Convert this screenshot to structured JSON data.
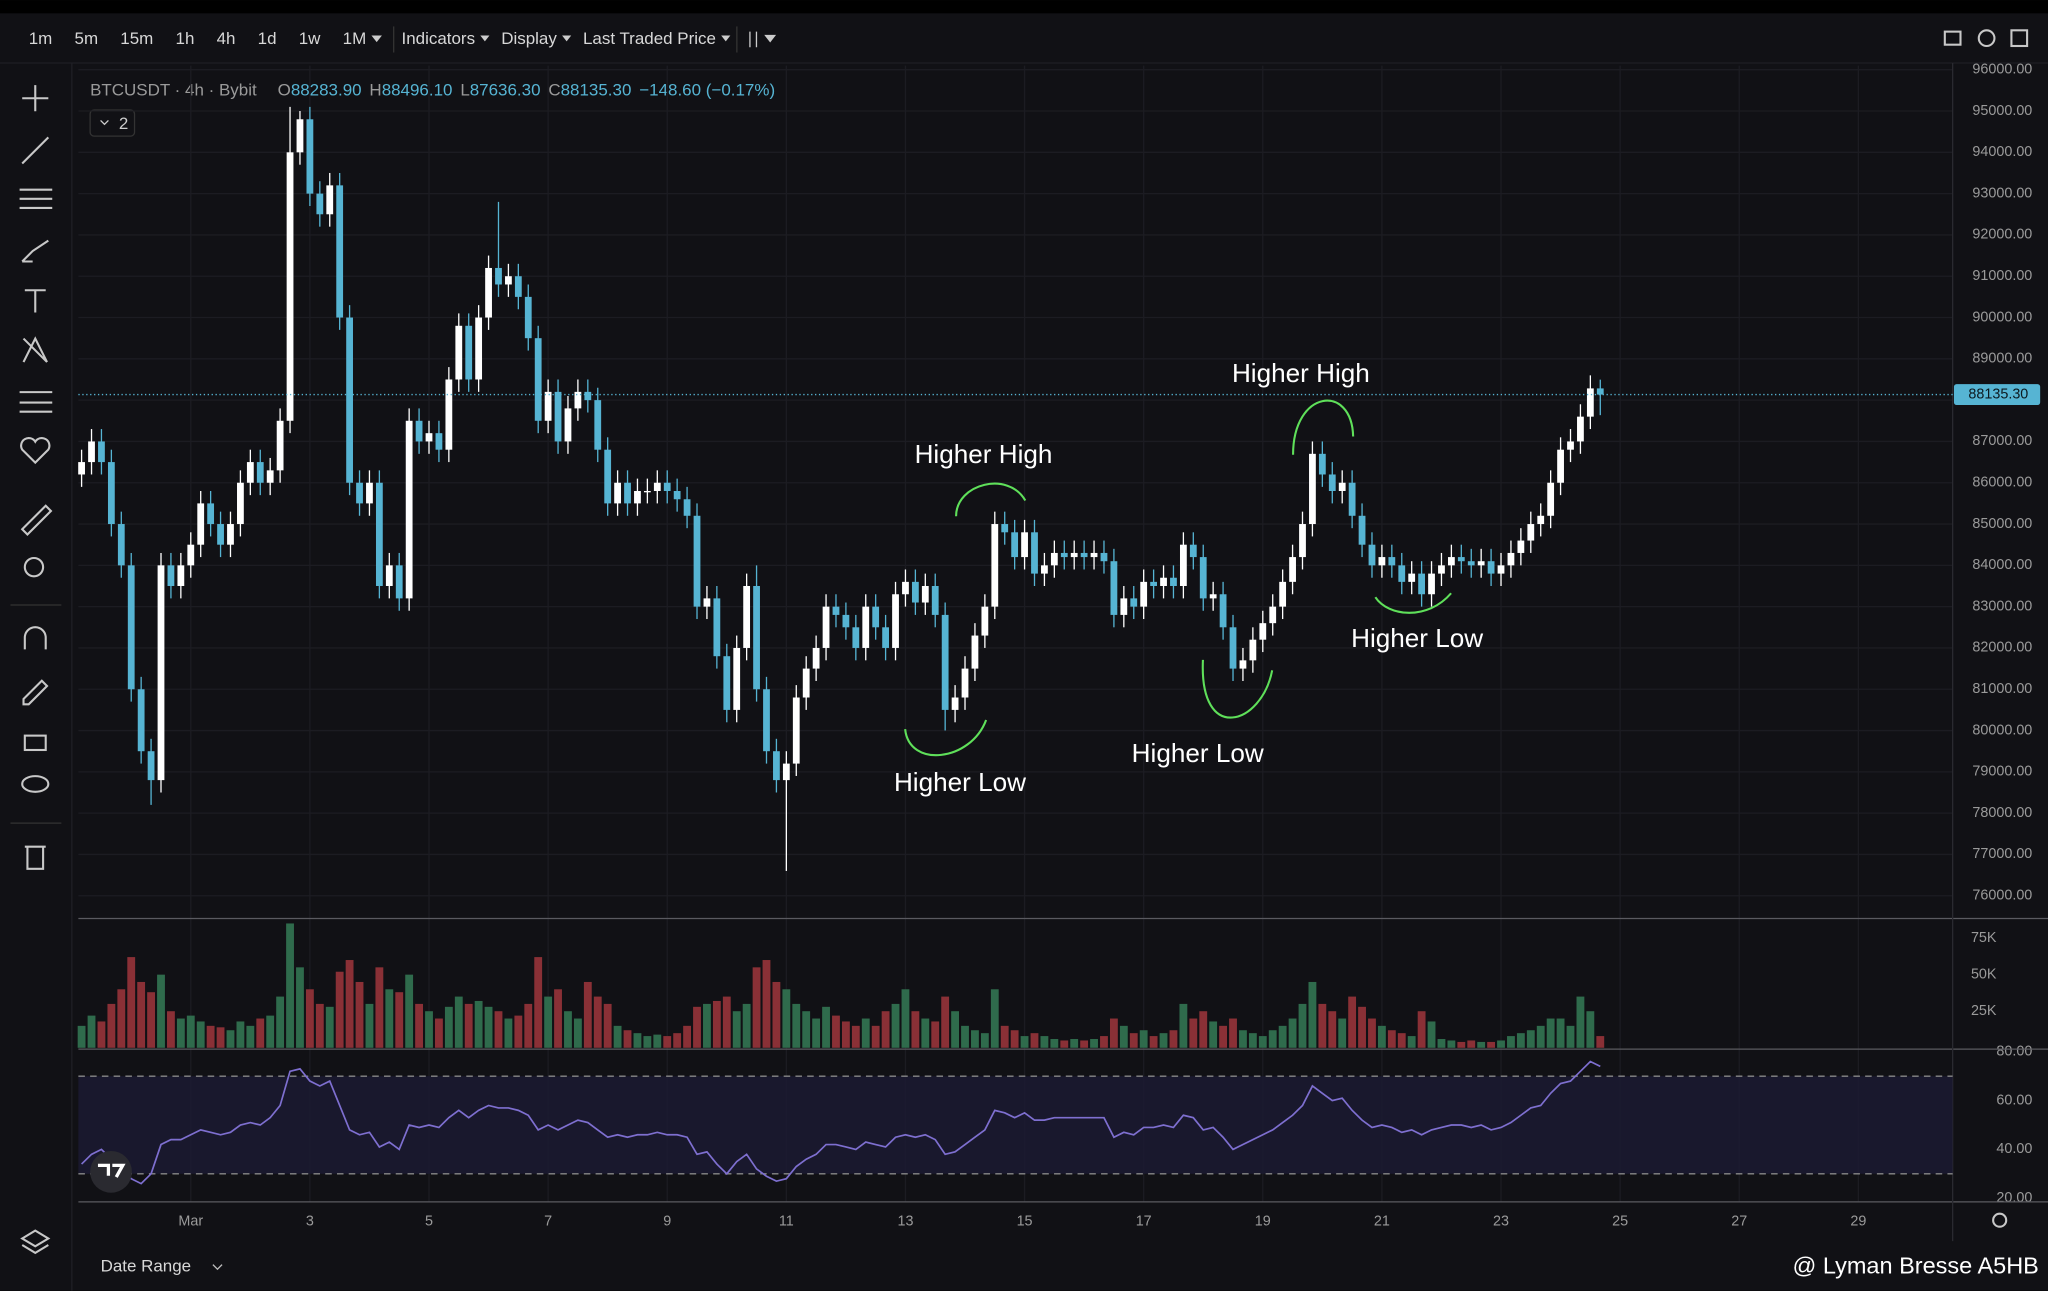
{
  "toolbar": {
    "intervals": [
      "1m",
      "5m",
      "15m",
      "1h",
      "4h",
      "1d",
      "1w",
      "1M"
    ],
    "menus": [
      "Indicators",
      "Display",
      "Last Traded Price"
    ]
  },
  "legend": {
    "symbol": "BTCUSDT · 4h · Bybit",
    "prefixes": [
      "O",
      "H",
      "L",
      "C"
    ],
    "open": "88283.90",
    "high": "88496.10",
    "low": "87636.30",
    "close": "88135.30",
    "change": "−148.60 (−0.17%)",
    "indicator_count": "2"
  },
  "footer": {
    "date_range": "Date Range",
    "watermark": "@ Lyman Bresse A5HB"
  },
  "chart_data": {
    "type": "candlestick",
    "up_color": "#ffffff",
    "down_color": "#56b4d3",
    "grid": true,
    "xlim": [
      -45.3,
      710
    ],
    "xticks": [
      {
        "value": 0,
        "label": "Mar"
      },
      {
        "value": 48,
        "label": "3"
      },
      {
        "value": 96,
        "label": "5"
      },
      {
        "value": 144,
        "label": "7"
      },
      {
        "value": 192,
        "label": "9"
      },
      {
        "value": 240,
        "label": "11"
      },
      {
        "value": 288,
        "label": "13"
      },
      {
        "value": 336,
        "label": "15"
      },
      {
        "value": 384,
        "label": "17"
      },
      {
        "value": 432,
        "label": "19"
      },
      {
        "value": 480,
        "label": "21"
      },
      {
        "value": 528,
        "label": "23"
      },
      {
        "value": 576,
        "label": "25"
      },
      {
        "value": 624,
        "label": "27"
      },
      {
        "value": 672,
        "label": "29"
      }
    ],
    "ylim": [
      75450,
      96100
    ],
    "yticks": [
      {
        "value": 76000,
        "label": "76000.00"
      },
      {
        "value": 77000,
        "label": "77000.00"
      },
      {
        "value": 78000,
        "label": "78000.00"
      },
      {
        "value": 79000,
        "label": "79000.00"
      },
      {
        "value": 80000,
        "label": "80000.00"
      },
      {
        "value": 81000,
        "label": "81000.00"
      },
      {
        "value": 82000,
        "label": "82000.00"
      },
      {
        "value": 83000,
        "label": "83000.00"
      },
      {
        "value": 84000,
        "label": "84000.00"
      },
      {
        "value": 85000,
        "label": "85000.00"
      },
      {
        "value": 86000,
        "label": "86000.00"
      },
      {
        "value": 87000,
        "label": "87000.00"
      },
      {
        "value": 88000,
        "label": "88000.00"
      },
      {
        "value": 89000,
        "label": "89000.00"
      },
      {
        "value": 90000,
        "label": "90000.00"
      },
      {
        "value": 91000,
        "label": "91000.00"
      },
      {
        "value": 92000,
        "label": "92000.00"
      },
      {
        "value": 93000,
        "label": "93000.00"
      },
      {
        "value": 94000,
        "label": "94000.00"
      },
      {
        "value": 95000,
        "label": "95000.00"
      },
      {
        "value": 96000,
        "label": "96000.00"
      }
    ],
    "last_price": 88135.3,
    "last_price_label": "88135.30",
    "last_price_color": "#56b4d3",
    "annotations": [
      "Higher High",
      "Higher High",
      "Higher Low",
      "Higher Low",
      "Higher Low"
    ],
    "x": [
      -44,
      -40,
      -36,
      -32,
      -28,
      -24,
      -20,
      -16,
      -12,
      -8,
      -4,
      0,
      4,
      8,
      12,
      16,
      20,
      24,
      28,
      32,
      36,
      40,
      44,
      48,
      52,
      56,
      60,
      64,
      68,
      72,
      76,
      80,
      84,
      88,
      92,
      96,
      100,
      104,
      108,
      112,
      116,
      120,
      124,
      128,
      132,
      136,
      140,
      144,
      148,
      152,
      156,
      160,
      164,
      168,
      172,
      176,
      180,
      184,
      188,
      192,
      196,
      200,
      204,
      208,
      212,
      216,
      220,
      224,
      228,
      232,
      236,
      240,
      244,
      248,
      252,
      256,
      260,
      264,
      268,
      272,
      276,
      280,
      284,
      288,
      292,
      296,
      300,
      304,
      308,
      312,
      316,
      320,
      324,
      328,
      332,
      336,
      340,
      344,
      348,
      352,
      356,
      360,
      364,
      368,
      372,
      376,
      380,
      384,
      388,
      392,
      396,
      400,
      404,
      408,
      412,
      416,
      420,
      424,
      428,
      432,
      436,
      440,
      444,
      448,
      452,
      456,
      460,
      464,
      468,
      472,
      476,
      480,
      484,
      488,
      492,
      496,
      500,
      504,
      508,
      512,
      516,
      520,
      524,
      528,
      532,
      536,
      540,
      544,
      548,
      552,
      556,
      560,
      564,
      568
    ],
    "open": [
      86200,
      86500,
      87000,
      86500,
      85000,
      84000,
      81000,
      79500,
      78800,
      84000,
      83500,
      84000,
      84500,
      85500,
      85000,
      84500,
      85000,
      86000,
      86500,
      86000,
      86300,
      87500,
      94000,
      94800,
      93000,
      92500,
      93200,
      90000,
      86000,
      85500,
      86000,
      83500,
      84000,
      83200,
      87500,
      87000,
      87200,
      86800,
      88500,
      89800,
      88500,
      90000,
      91200,
      90800,
      91000,
      90500,
      89500,
      87500,
      88200,
      87000,
      87800,
      88200,
      88000,
      86800,
      85500,
      86000,
      85500,
      85800,
      85800,
      86000,
      85800,
      85600,
      85200,
      83000,
      83200,
      81800,
      80500,
      82000,
      83500,
      81000,
      79500,
      78800,
      79200,
      80800,
      81500,
      82000,
      83000,
      82800,
      82500,
      82000,
      83000,
      82500,
      82000,
      83300,
      83600,
      83100,
      83500,
      82800,
      80500,
      80800,
      81500,
      82300,
      83000,
      85000,
      84800,
      84200,
      84800,
      83800,
      84000,
      84300,
      84200,
      84300,
      84200,
      84300,
      84100,
      82800,
      83200,
      83000,
      83600,
      83500,
      83700,
      83500,
      84500,
      84200,
      83200,
      83300,
      82500,
      81500,
      81700,
      82200,
      82600,
      83000,
      83600,
      84200,
      85000,
      86700,
      86200,
      85800,
      86000,
      85200,
      84500,
      84000,
      84200,
      84000,
      83600,
      83800,
      83300,
      83800,
      84000,
      84200,
      84100,
      84000,
      84100,
      83800,
      84000,
      84300,
      84600,
      85000,
      85200,
      86000,
      86800,
      87000,
      87600,
      88283.9
    ],
    "high": [
      86800,
      87300,
      87300,
      86800,
      85300,
      84300,
      81300,
      79800,
      84300,
      84300,
      84300,
      84800,
      85800,
      85800,
      85300,
      85300,
      86300,
      86800,
      86800,
      86600,
      87800,
      95100,
      95000,
      95100,
      93300,
      93500,
      93500,
      90300,
      86300,
      86300,
      86300,
      84300,
      84300,
      87800,
      87800,
      87500,
      87500,
      88800,
      90100,
      90100,
      90300,
      91500,
      92800,
      91300,
      91300,
      90800,
      89800,
      88500,
      88500,
      88100,
      88500,
      88500,
      88300,
      87100,
      86300,
      86300,
      86100,
      86100,
      86300,
      86300,
      86100,
      85900,
      85500,
      83500,
      83500,
      82100,
      82300,
      83800,
      84000,
      81300,
      79800,
      79500,
      81100,
      81800,
      82300,
      83300,
      83300,
      83100,
      82800,
      83300,
      83300,
      82800,
      83600,
      83900,
      83900,
      83800,
      83800,
      83100,
      81100,
      81800,
      82600,
      83300,
      85300,
      85300,
      85100,
      85100,
      85100,
      84300,
      84600,
      84600,
      84600,
      84600,
      84600,
      84600,
      84400,
      83500,
      83500,
      83900,
      83900,
      84000,
      84000,
      84800,
      84800,
      84500,
      83600,
      83600,
      82800,
      82000,
      82500,
      82900,
      83300,
      83900,
      84500,
      85300,
      87000,
      87000,
      86500,
      86300,
      86300,
      85500,
      84800,
      84500,
      84500,
      84300,
      84100,
      84100,
      84100,
      84300,
      84500,
      84500,
      84400,
      84400,
      84400,
      84300,
      84600,
      84900,
      85300,
      85500,
      86300,
      87100,
      87300,
      87900,
      88600,
      88496.1
    ],
    "low": [
      85900,
      86200,
      86200,
      84700,
      83700,
      80700,
      79200,
      78200,
      78500,
      83200,
      83200,
      83700,
      84200,
      84700,
      84200,
      84200,
      84700,
      85700,
      85700,
      85700,
      86000,
      87200,
      93700,
      92700,
      92200,
      92200,
      89700,
      85700,
      85200,
      85200,
      83200,
      83200,
      82900,
      82900,
      86700,
      86700,
      86500,
      86500,
      88200,
      88200,
      88200,
      89700,
      90500,
      90500,
      90200,
      89200,
      87200,
      87200,
      86700,
      86700,
      87500,
      87700,
      86500,
      85200,
      85200,
      85200,
      85200,
      85500,
      85500,
      85500,
      85300,
      84900,
      82700,
      82700,
      81500,
      80200,
      80200,
      81700,
      80700,
      79200,
      78500,
      76600,
      78900,
      80500,
      81200,
      81700,
      82500,
      82200,
      81700,
      81700,
      82200,
      81700,
      81700,
      83000,
      82800,
      82800,
      82500,
      80000,
      80200,
      80500,
      81200,
      82000,
      82700,
      84500,
      83900,
      83900,
      83500,
      83500,
      83700,
      83900,
      83900,
      83900,
      83900,
      83800,
      82500,
      82500,
      82700,
      82700,
      83200,
      83200,
      83200,
      83200,
      83900,
      82900,
      82900,
      82200,
      81200,
      81200,
      81400,
      81900,
      82300,
      82700,
      83300,
      83900,
      84700,
      85900,
      85500,
      85500,
      84900,
      84200,
      83700,
      83700,
      83700,
      83300,
      83300,
      83000,
      83000,
      83500,
      83700,
      83800,
      83700,
      83700,
      83500,
      83500,
      83700,
      84000,
      84300,
      84700,
      84900,
      85700,
      86500,
      86700,
      87300,
      87636.3
    ],
    "close": [
      86500,
      87000,
      86500,
      85000,
      84000,
      81000,
      79500,
      78800,
      84000,
      83500,
      84000,
      84500,
      85500,
      85000,
      84500,
      85000,
      86000,
      86500,
      86000,
      86300,
      87500,
      94000,
      94800,
      93000,
      92500,
      93200,
      90000,
      86000,
      85500,
      86000,
      83500,
      84000,
      83200,
      87500,
      87000,
      87200,
      86800,
      88500,
      89800,
      88500,
      90000,
      91200,
      90800,
      91000,
      90500,
      89500,
      87500,
      88200,
      87000,
      87800,
      88200,
      88000,
      86800,
      85500,
      86000,
      85500,
      85800,
      85800,
      86000,
      85800,
      85600,
      85200,
      83000,
      83200,
      81800,
      80500,
      82000,
      83500,
      81000,
      79500,
      78800,
      79200,
      80800,
      81500,
      82000,
      83000,
      82800,
      82500,
      82000,
      83000,
      82500,
      82000,
      83300,
      83600,
      83100,
      83500,
      82800,
      80500,
      80800,
      81500,
      82300,
      83000,
      85000,
      84800,
      84200,
      84800,
      83800,
      84000,
      84300,
      84200,
      84300,
      84200,
      84300,
      84100,
      82800,
      83200,
      83000,
      83600,
      83500,
      83700,
      83500,
      84500,
      84200,
      83200,
      83300,
      82500,
      81500,
      81700,
      82200,
      82600,
      83000,
      83600,
      84200,
      85000,
      86700,
      86200,
      85800,
      86000,
      85200,
      84500,
      84000,
      84200,
      84000,
      83600,
      83800,
      83300,
      83800,
      84000,
      84200,
      84100,
      84000,
      84100,
      83800,
      84000,
      84300,
      84600,
      85000,
      85200,
      86000,
      86800,
      87000,
      87600,
      88283.9,
      88135.3
    ],
    "volume": {
      "up_color": "#2f6b4c",
      "down_color": "#8a3036",
      "ylim": [
        0,
        88400
      ],
      "yticks": [
        {
          "value": 25000,
          "label": "25K"
        },
        {
          "value": 50000,
          "label": "50K"
        },
        {
          "value": 75000,
          "label": "75K"
        }
      ],
      "values": [
        15000,
        22000,
        18000,
        30000,
        40000,
        62000,
        45000,
        38000,
        50000,
        25000,
        20000,
        22000,
        18000,
        15000,
        14000,
        12000,
        18000,
        15000,
        20000,
        22000,
        35000,
        85000,
        55000,
        40000,
        30000,
        28000,
        52000,
        60000,
        45000,
        30000,
        55000,
        40000,
        38000,
        50000,
        30000,
        25000,
        20000,
        28000,
        35000,
        30000,
        32000,
        28000,
        25000,
        20000,
        22000,
        30000,
        62000,
        35000,
        40000,
        25000,
        20000,
        45000,
        35000,
        30000,
        15000,
        12000,
        10000,
        8000,
        9000,
        8000,
        10000,
        15000,
        28000,
        30000,
        32000,
        35000,
        25000,
        30000,
        55000,
        60000,
        45000,
        40000,
        30000,
        25000,
        20000,
        28000,
        22000,
        18000,
        15000,
        20000,
        15000,
        25000,
        30000,
        40000,
        25000,
        20000,
        18000,
        35000,
        25000,
        15000,
        12000,
        10000,
        40000,
        15000,
        12000,
        8000,
        10000,
        8000,
        6000,
        5000,
        6000,
        5000,
        6000,
        8000,
        20000,
        15000,
        10000,
        12000,
        8000,
        10000,
        12000,
        30000,
        20000,
        25000,
        18000,
        15000,
        20000,
        12000,
        10000,
        8000,
        12000,
        15000,
        20000,
        30000,
        45000,
        30000,
        25000,
        20000,
        35000,
        28000,
        20000,
        15000,
        12000,
        10000,
        8000,
        25000,
        18000,
        6000,
        5000,
        4000,
        5000,
        4000,
        4000,
        5000,
        8000,
        10000,
        12000,
        15000,
        20000,
        20000,
        15000,
        35000,
        25000,
        8000
      ]
    },
    "rsi": {
      "color": "#7e6fd0",
      "band": [
        30,
        70
      ],
      "band_color": "#1c1a33",
      "ylim": [
        18.5,
        81.1
      ],
      "yticks": [
        {
          "value": 20,
          "label": "20.00"
        },
        {
          "value": 40,
          "label": "40.00"
        },
        {
          "value": 60,
          "label": "60.00"
        },
        {
          "value": 80,
          "label": "80.00"
        }
      ],
      "values": [
        34,
        38,
        40,
        36,
        32,
        28,
        26,
        30,
        42,
        44,
        44,
        46,
        48,
        47,
        46,
        47,
        50,
        51,
        50,
        53,
        58,
        72,
        73,
        68,
        66,
        68,
        58,
        48,
        46,
        47,
        41,
        43,
        40,
        50,
        49,
        50,
        49,
        53,
        56,
        53,
        56,
        58,
        57,
        57,
        56,
        54,
        48,
        50,
        48,
        50,
        52,
        51,
        48,
        45,
        46,
        45,
        46,
        46,
        47,
        46,
        46,
        45,
        38,
        39,
        34,
        30,
        35,
        38,
        32,
        29,
        27,
        28,
        33,
        36,
        38,
        42,
        42,
        41,
        40,
        43,
        42,
        41,
        45,
        46,
        45,
        46,
        44,
        38,
        39,
        42,
        45,
        48,
        56,
        55,
        53,
        55,
        52,
        52,
        53,
        53,
        53,
        53,
        53,
        53,
        45,
        47,
        46,
        49,
        49,
        50,
        49,
        54,
        53,
        48,
        49,
        45,
        40,
        42,
        44,
        46,
        48,
        51,
        54,
        58,
        66,
        63,
        60,
        61,
        56,
        52,
        49,
        50,
        49,
        47,
        48,
        46,
        48,
        49,
        50,
        50,
        49,
        50,
        48,
        49,
        51,
        54,
        57,
        58,
        63,
        67,
        68,
        72,
        76,
        74
      ]
    }
  }
}
